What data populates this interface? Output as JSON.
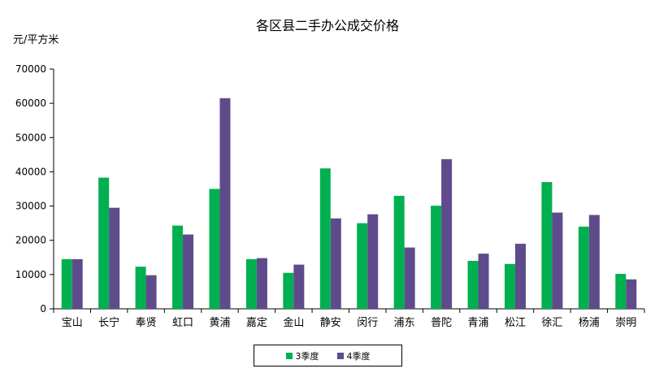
{
  "chart_data": {
    "type": "bar",
    "title": "各区县二手办公成交价格",
    "ylabel": "元/平方米",
    "xlabel": "",
    "ylim": [
      0,
      70000
    ],
    "yticks": [
      0,
      10000,
      20000,
      30000,
      40000,
      50000,
      60000,
      70000
    ],
    "grid": false,
    "legend_position": "bottom",
    "categories": [
      "宝山",
      "长宁",
      "奉贤",
      "虹口",
      "黄浦",
      "嘉定",
      "金山",
      "静安",
      "闵行",
      "浦东",
      "普陀",
      "青浦",
      "松江",
      "徐汇",
      "杨浦",
      "崇明"
    ],
    "series": [
      {
        "name": "3季度",
        "color": "#00b050",
        "values": [
          14500,
          38300,
          12300,
          24300,
          35000,
          14500,
          10500,
          41000,
          25000,
          33000,
          30100,
          14000,
          13100,
          37000,
          24000,
          10200
        ]
      },
      {
        "name": "4季度",
        "color": "#5f4b8b",
        "values": [
          14500,
          29500,
          9800,
          21700,
          61500,
          14800,
          12900,
          26400,
          27600,
          17900,
          43700,
          16100,
          19000,
          28100,
          27400,
          8600
        ]
      }
    ]
  }
}
